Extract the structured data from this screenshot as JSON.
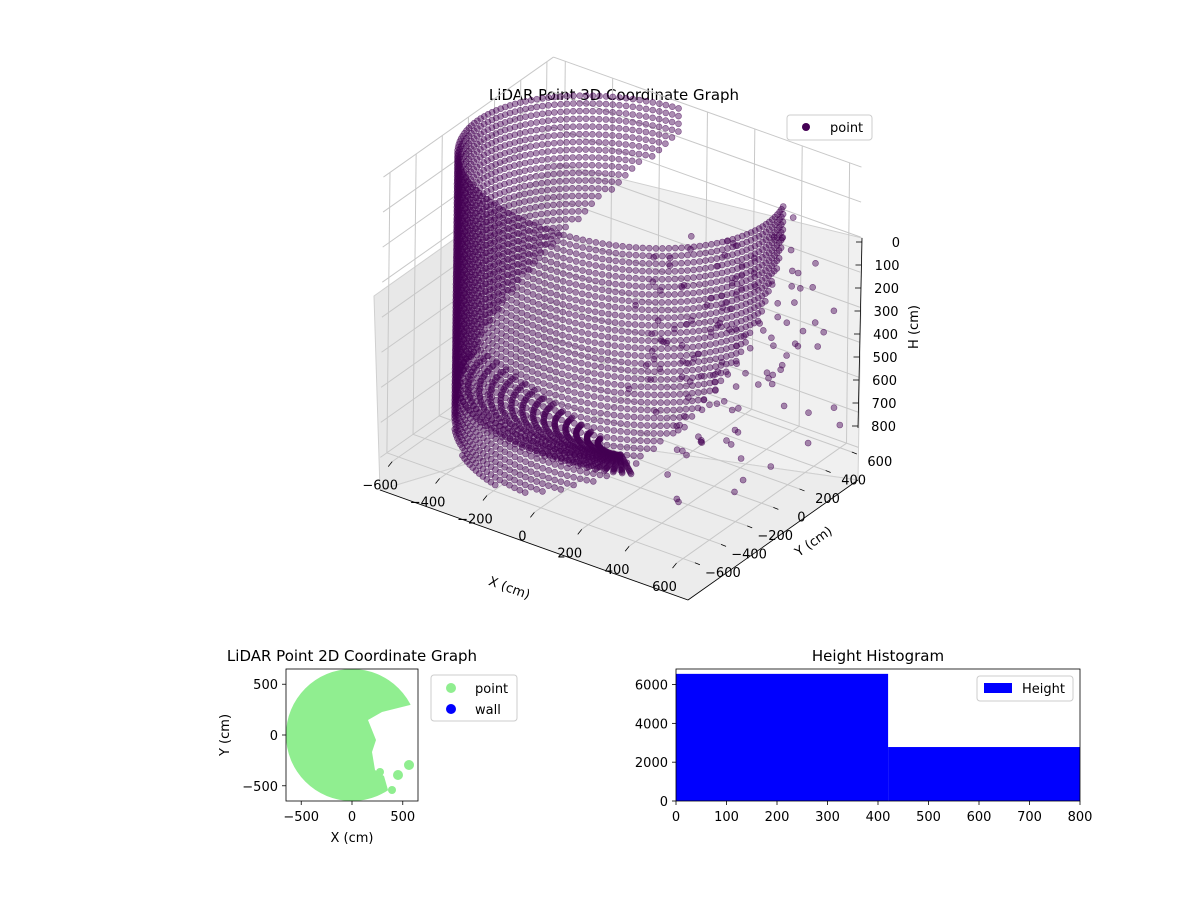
{
  "chart_data": [
    {
      "type": "scatter",
      "projection": "3d",
      "title": "LiDAR Point 3D Coordinate Graph",
      "xlabel": "X (cm)",
      "ylabel": "Y (cm)",
      "zlabel": "H (cm)",
      "xlim": [
        -650,
        650
      ],
      "ylim": [
        -650,
        650
      ],
      "zlim": [
        800,
        0
      ],
      "xticks": [
        "−600",
        "−400",
        "−200",
        "0",
        "200",
        "400",
        "600"
      ],
      "yticks": [
        "−600",
        "−400",
        "−200",
        "0",
        "200",
        "400",
        "600"
      ],
      "zticks": [
        "0",
        "100",
        "200",
        "300",
        "400",
        "500",
        "600",
        "700",
        "800"
      ],
      "legend": {
        "labels": [
          "point"
        ],
        "placement": "top-right"
      },
      "series": [
        {
          "name": "point",
          "color": "#440154",
          "description_of_shape": "dense ring of points around the scanner, radius ~600 cm, heights 0–800 cm; a sloped floor sheet converging toward the centre; sparse points on the +X side",
          "sample_points": [
            {
              "x": -600,
              "y": 0,
              "h": 0
            },
            {
              "x": -600,
              "y": 0,
              "h": 400
            },
            {
              "x": 0,
              "y": 600,
              "h": 0
            },
            {
              "x": 0,
              "y": 600,
              "h": 300
            },
            {
              "x": 420,
              "y": 420,
              "h": 0
            },
            {
              "x": 420,
              "y": 420,
              "h": 250
            },
            {
              "x": -420,
              "y": -420,
              "h": 0
            },
            {
              "x": -420,
              "y": -420,
              "h": 600
            },
            {
              "x": 0,
              "y": -600,
              "h": 700
            },
            {
              "x": 0,
              "y": 0,
              "h": 800
            },
            {
              "x": 500,
              "y": 0,
              "h": 750
            },
            {
              "x": 600,
              "y": 200,
              "h": 520
            }
          ]
        }
      ]
    },
    {
      "type": "scatter",
      "title": "LiDAR Point 2D Coordinate Graph",
      "xlabel": "X (cm)",
      "ylabel": "Y (cm)",
      "xlim": [
        -650,
        650
      ],
      "ylim": [
        -650,
        650
      ],
      "xticks": [
        "−500",
        "0",
        "500"
      ],
      "yticks": [
        "−500",
        "0",
        "500"
      ],
      "legend": {
        "labels": [
          "point",
          "wall"
        ],
        "placement": "outside-right"
      },
      "series": [
        {
          "name": "point",
          "color": "#90ee90",
          "description_of_shape": "filled disc of radius ~640 cm centred at origin with a notch on the +X / −Y side"
        },
        {
          "name": "wall",
          "color": "#0000ff",
          "values": []
        }
      ]
    },
    {
      "type": "bar",
      "subtype": "histogram",
      "title": "Height Histogram",
      "xlim": [
        0,
        800
      ],
      "ylim": [
        0,
        6800
      ],
      "xticks": [
        "0",
        "100",
        "200",
        "300",
        "400",
        "500",
        "600",
        "700",
        "800"
      ],
      "yticks": [
        "0",
        "2000",
        "4000",
        "6000"
      ],
      "legend": {
        "labels": [
          "Height"
        ],
        "placement": "top-right"
      },
      "series": [
        {
          "name": "Height",
          "color": "#0000ff",
          "bins": [
            {
              "start": 0,
              "end": 420,
              "count": 6550
            },
            {
              "start": 420,
              "end": 800,
              "count": 2780
            }
          ]
        }
      ]
    }
  ]
}
